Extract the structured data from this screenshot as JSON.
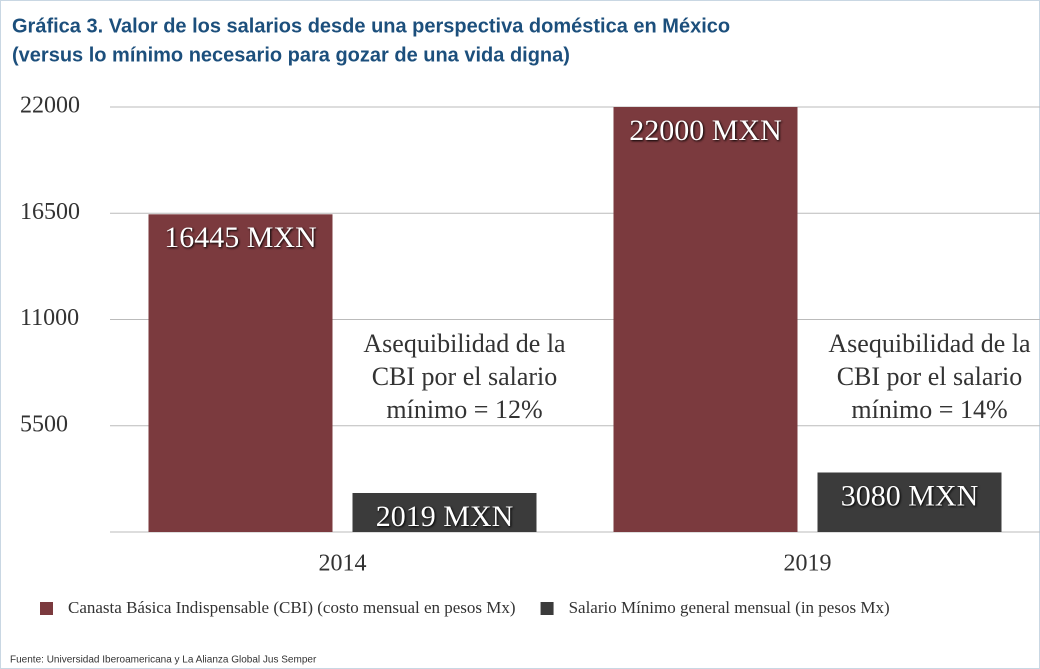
{
  "chart_data": {
    "type": "bar",
    "title": "Gráfica 3. Valor de los salarios desde una perspectiva doméstica en México",
    "subtitle": "(versus lo mínimo necesario para gozar de una vida digna)",
    "categories": [
      "2014",
      "2019"
    ],
    "series": [
      {
        "name": "Canasta Básica Indispensable (CBI) (costo mensual en pesos Mx)",
        "color": "#7b3a3e",
        "values": [
          16445,
          22000
        ],
        "value_labels": [
          "16445 MXN",
          "22000 MXN"
        ]
      },
      {
        "name": "Salario Mínimo general mensual (in pesos Mx)",
        "color": "#3b3b3b",
        "values": [
          2019,
          3080
        ],
        "value_labels": [
          "2019 MXN",
          "3080 MXN"
        ]
      }
    ],
    "annotations": [
      [
        "Asequibilidad de la",
        "CBI por el salario",
        "mínimo =  12%"
      ],
      [
        "Asequibilidad de la",
        "CBI por el salario",
        "mínimo =  14%"
      ]
    ],
    "ylim": [
      0,
      22000
    ],
    "yticks": [
      5500,
      11000,
      16500,
      22000
    ],
    "grid": true,
    "legend": "bottom",
    "source": "Fuente: Universidad Iberoamericana y La Alianza Global Jus Semper"
  }
}
